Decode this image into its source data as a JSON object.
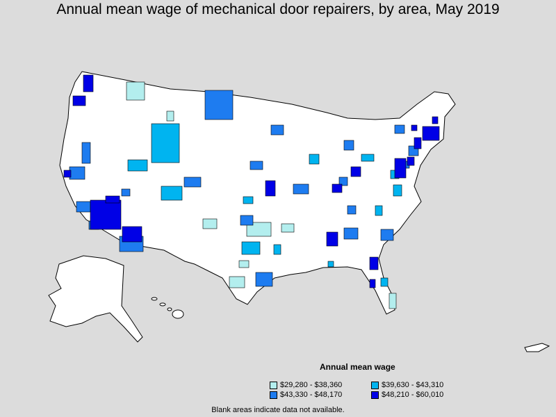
{
  "title": "Annual mean wage of mechanical door repairers, by area, May 2019",
  "legend": {
    "title": "Annual mean wage",
    "items": [
      {
        "label": "$29,280 - $38,360",
        "color": "#b3eeee"
      },
      {
        "label": "$39,630 - $43,310",
        "color": "#00b4f0"
      },
      {
        "label": "$43,330 - $48,170",
        "color": "#1e7cf0"
      },
      {
        "label": "$48,210 - $60,010",
        "color": "#0000e6"
      }
    ]
  },
  "footnote": "Blank areas indicate data not available.",
  "colors": {
    "background": "#dcdcdc",
    "land": "#ffffff",
    "border": "#000000"
  }
}
